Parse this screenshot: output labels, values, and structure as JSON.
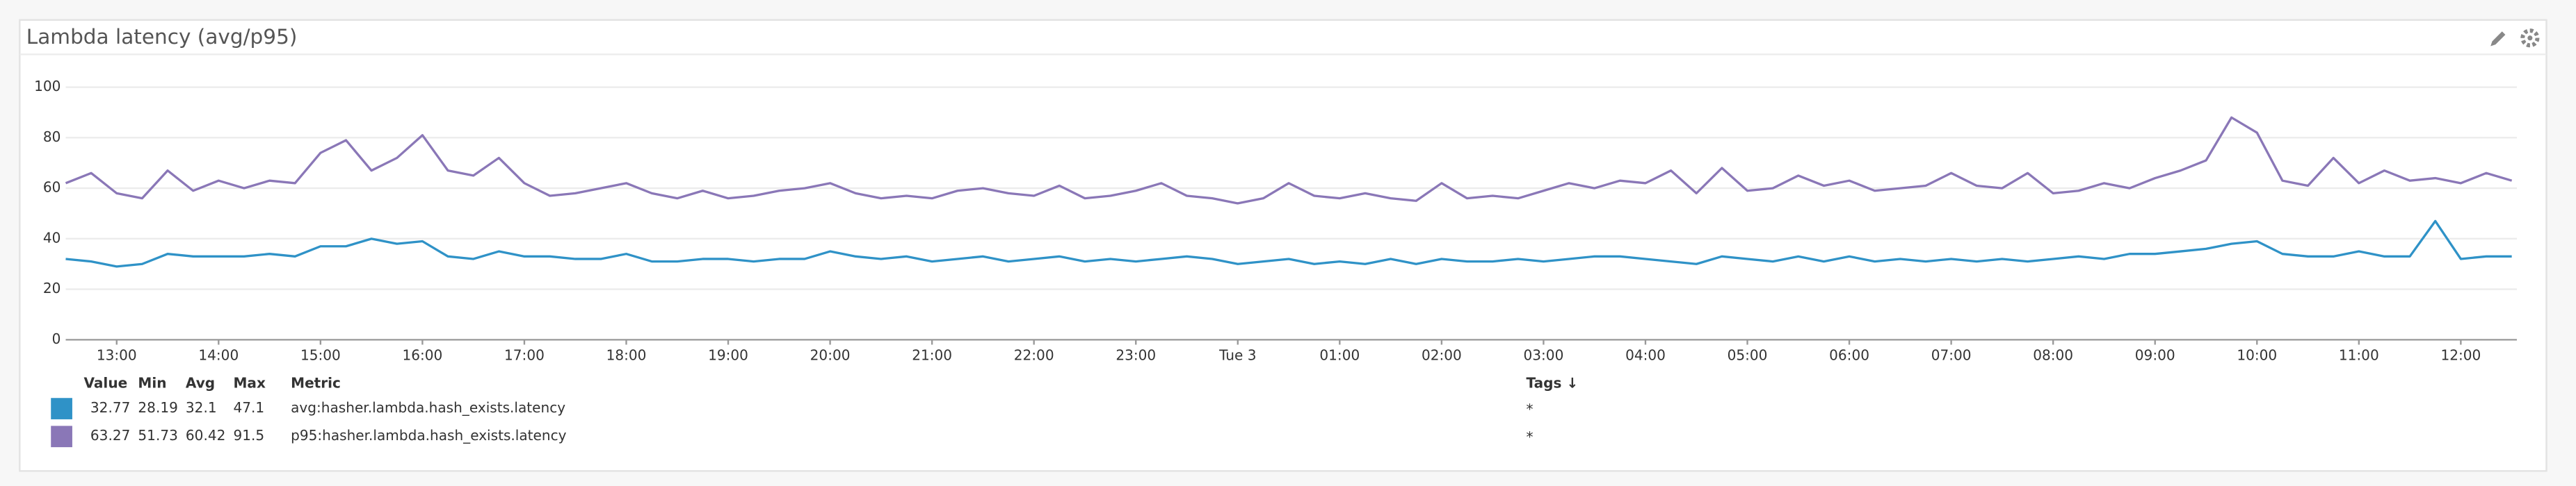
{
  "chart_data": {
    "type": "line",
    "title": "Lambda latency (avg/p95)",
    "x": [
      12.5,
      12.75,
      13,
      13.25,
      13.5,
      13.75,
      14,
      14.25,
      14.5,
      14.75,
      15,
      15.25,
      15.5,
      15.75,
      16,
      16.25,
      16.5,
      16.75,
      17,
      17.25,
      17.5,
      17.75,
      18,
      18.25,
      18.5,
      18.75,
      19,
      19.25,
      19.5,
      19.75,
      20,
      20.25,
      20.5,
      20.75,
      21,
      21.25,
      21.5,
      21.75,
      22,
      22.25,
      22.5,
      22.75,
      23,
      23.25,
      23.5,
      23.75,
      24,
      24.25,
      24.5,
      24.75,
      25,
      25.25,
      25.5,
      25.75,
      26,
      26.25,
      26.5,
      26.75,
      27,
      27.25,
      27.5,
      27.75,
      28,
      28.25,
      28.5,
      28.75,
      29,
      29.25,
      29.5,
      29.75,
      30,
      30.25,
      30.5,
      30.75,
      31,
      31.25,
      31.5,
      31.75,
      32,
      32.25,
      32.5,
      32.75,
      33,
      33.25,
      33.5,
      33.75,
      34,
      34.25,
      34.5,
      34.75,
      35,
      35.25,
      35.5,
      35.75,
      36,
      36.25,
      36.5
    ],
    "xlim": [
      12.5,
      36.55
    ],
    "xticks": [
      {
        "value": 13,
        "label": "13:00"
      },
      {
        "value": 14,
        "label": "14:00"
      },
      {
        "value": 15,
        "label": "15:00"
      },
      {
        "value": 16,
        "label": "16:00"
      },
      {
        "value": 17,
        "label": "17:00"
      },
      {
        "value": 18,
        "label": "18:00"
      },
      {
        "value": 19,
        "label": "19:00"
      },
      {
        "value": 20,
        "label": "20:00"
      },
      {
        "value": 21,
        "label": "21:00"
      },
      {
        "value": 22,
        "label": "22:00"
      },
      {
        "value": 23,
        "label": "23:00"
      },
      {
        "value": 24,
        "label": "Tue 3"
      },
      {
        "value": 25,
        "label": "01:00"
      },
      {
        "value": 26,
        "label": "02:00"
      },
      {
        "value": 27,
        "label": "03:00"
      },
      {
        "value": 28,
        "label": "04:00"
      },
      {
        "value": 29,
        "label": "05:00"
      },
      {
        "value": 30,
        "label": "06:00"
      },
      {
        "value": 31,
        "label": "07:00"
      },
      {
        "value": 32,
        "label": "08:00"
      },
      {
        "value": 33,
        "label": "09:00"
      },
      {
        "value": 34,
        "label": "10:00"
      },
      {
        "value": 35,
        "label": "11:00"
      },
      {
        "value": 36,
        "label": "12:00"
      }
    ],
    "ylim": [
      0,
      100
    ],
    "yticks": [
      0,
      20,
      40,
      60,
      80,
      100
    ],
    "grid": true,
    "legend_columns": [
      "Value",
      "Min",
      "Avg",
      "Max",
      "Metric",
      "Tags ↓"
    ],
    "series": [
      {
        "name": "avg:hasher.lambda.hash_exists.latency",
        "color": "#2f92c7",
        "stats": [
          32.77,
          28.19,
          32.1,
          47.1
        ],
        "tags": "*",
        "values": [
          32,
          31,
          29,
          30,
          34,
          33,
          33,
          33,
          34,
          33,
          37,
          37,
          40,
          38,
          39,
          33,
          32,
          35,
          33,
          33,
          32,
          32,
          34,
          31,
          31,
          32,
          32,
          31,
          32,
          32,
          35,
          33,
          32,
          33,
          31,
          32,
          33,
          31,
          32,
          33,
          31,
          32,
          31,
          32,
          33,
          32,
          30,
          31,
          32,
          30,
          31,
          30,
          32,
          30,
          32,
          31,
          31,
          32,
          31,
          32,
          33,
          33,
          32,
          31,
          30,
          33,
          32,
          31,
          33,
          31,
          33,
          31,
          32,
          31,
          32,
          31,
          32,
          31,
          32,
          33,
          32,
          34,
          34,
          35,
          36,
          38,
          39,
          34,
          33,
          33,
          35,
          33,
          33,
          47,
          32,
          33,
          33
        ]
      },
      {
        "name": "p95:hasher.lambda.hash_exists.latency",
        "color": "#8a77b7",
        "stats": [
          63.27,
          51.73,
          60.42,
          91.5
        ],
        "tags": "*",
        "values": [
          62,
          66,
          58,
          56,
          67,
          59,
          63,
          60,
          63,
          62,
          74,
          79,
          67,
          72,
          81,
          67,
          65,
          72,
          62,
          57,
          58,
          60,
          62,
          58,
          56,
          59,
          56,
          57,
          59,
          60,
          62,
          58,
          56,
          57,
          56,
          59,
          60,
          58,
          57,
          61,
          56,
          57,
          59,
          62,
          57,
          56,
          54,
          56,
          62,
          57,
          56,
          58,
          56,
          55,
          62,
          56,
          57,
          56,
          59,
          62,
          60,
          63,
          62,
          67,
          58,
          68,
          59,
          60,
          65,
          61,
          63,
          59,
          60,
          61,
          66,
          61,
          60,
          66,
          58,
          59,
          62,
          60,
          64,
          67,
          71,
          88,
          82,
          63,
          61,
          72,
          62,
          67,
          63,
          64,
          62,
          66,
          63
        ]
      }
    ]
  }
}
